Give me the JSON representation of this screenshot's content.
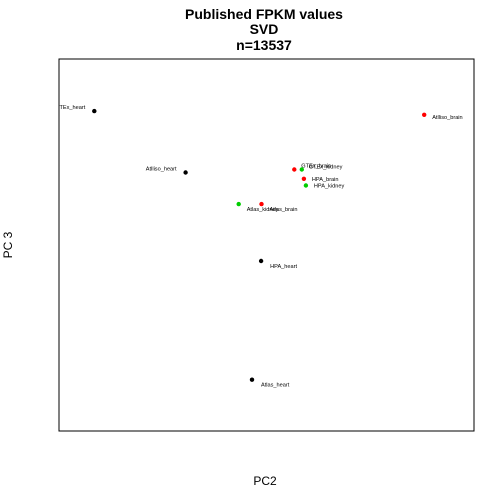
{
  "chart_data": {
    "type": "scatter",
    "title_lines": [
      "Published FPKM values",
      "SVD",
      "n=13537"
    ],
    "xlabel": "PC2",
    "ylabel": "PC 3",
    "grid": false,
    "legend": "none",
    "colors": {
      "black": "#000000",
      "red": "#ff0000",
      "green": "#00cd00"
    },
    "points": [
      {
        "label": "TEx_heart",
        "x": 0.085,
        "y": 0.86,
        "color": "black"
      },
      {
        "label": "Atlliso_brain",
        "x": 0.88,
        "y": 0.85,
        "color": "red"
      },
      {
        "label": "Atlliso_heart",
        "x": 0.305,
        "y": 0.695,
        "color": "black"
      },
      {
        "label": "GTEx_brain",
        "x": 0.567,
        "y": 0.703,
        "color": "red"
      },
      {
        "label": "GTEx_kidney",
        "x": 0.585,
        "y": 0.703,
        "color": "green"
      },
      {
        "label": "HPA_brain",
        "x": 0.59,
        "y": 0.678,
        "color": "red"
      },
      {
        "label": "HPA_kidney",
        "x": 0.595,
        "y": 0.66,
        "color": "green"
      },
      {
        "label": "Atlas_kidney",
        "x": 0.433,
        "y": 0.61,
        "color": "green"
      },
      {
        "label": "Atlas_brain",
        "x": 0.488,
        "y": 0.61,
        "color": "red"
      },
      {
        "label": "HPA_heart",
        "x": 0.487,
        "y": 0.457,
        "color": "black"
      },
      {
        "label": "Atlas_heart",
        "x": 0.465,
        "y": 0.138,
        "color": "black"
      }
    ]
  }
}
